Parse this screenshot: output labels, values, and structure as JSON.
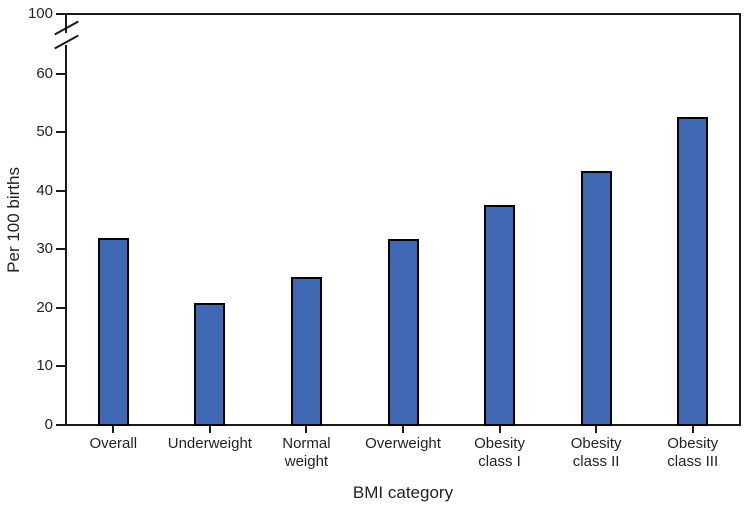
{
  "chart_data": {
    "type": "bar",
    "title": "",
    "categories": [
      "Overall",
      "Underweight",
      "Normal weight",
      "Overweight",
      "Obesity class I",
      "Obesity class II",
      "Obesity class III"
    ],
    "categories_display": [
      [
        "Overall"
      ],
      [
        "Underweight"
      ],
      [
        "Normal",
        "weight"
      ],
      [
        "Overweight"
      ],
      [
        "Obesity",
        "class I"
      ],
      [
        "Obesity",
        "class II"
      ],
      [
        "Obesity",
        "class III"
      ]
    ],
    "values": [
      31.8,
      20.7,
      25.1,
      31.6,
      37.4,
      43.2,
      52.4
    ],
    "xlabel": "BMI category",
    "ylabel": "Per 100 births",
    "y_ticks": [
      0,
      10,
      20,
      30,
      40,
      50,
      60,
      100
    ],
    "ylim": [
      0,
      100
    ],
    "axis_break": {
      "between": [
        60,
        100
      ]
    },
    "grid": false,
    "legend": null,
    "colors": {
      "bar_fill": "#3E68B3",
      "bar_edge": "#000000",
      "axis": "#1A1A1A",
      "text": "#231F20"
    }
  }
}
